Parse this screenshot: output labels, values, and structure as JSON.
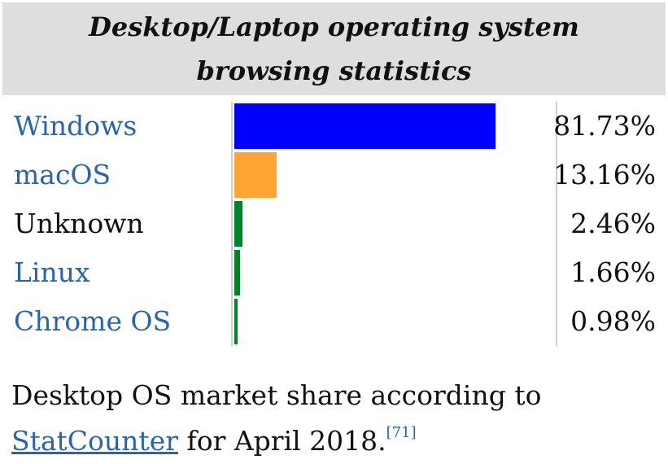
{
  "chart_data": {
    "type": "bar",
    "orientation": "horizontal",
    "title": "Desktop/Laptop operating system browsing statistics",
    "categories": [
      "Windows",
      "macOS",
      "Unknown",
      "Linux",
      "Chrome OS"
    ],
    "values": [
      81.73,
      13.16,
      2.46,
      1.66,
      0.98
    ],
    "value_labels": [
      "81.73%",
      "13.16%",
      "2.46%",
      "1.66%",
      "0.98%"
    ],
    "category_links": [
      true,
      true,
      false,
      true,
      true
    ],
    "colors": [
      "#0000ff",
      "#ffa533",
      "#008426",
      "#008426",
      "#008426"
    ],
    "xlim": [
      0,
      100
    ],
    "grid": false
  },
  "caption": {
    "text_before": "Desktop OS market share according to ",
    "link_text": "StatCounter",
    "text_after": " for April 2018.",
    "ref": "[71]"
  }
}
